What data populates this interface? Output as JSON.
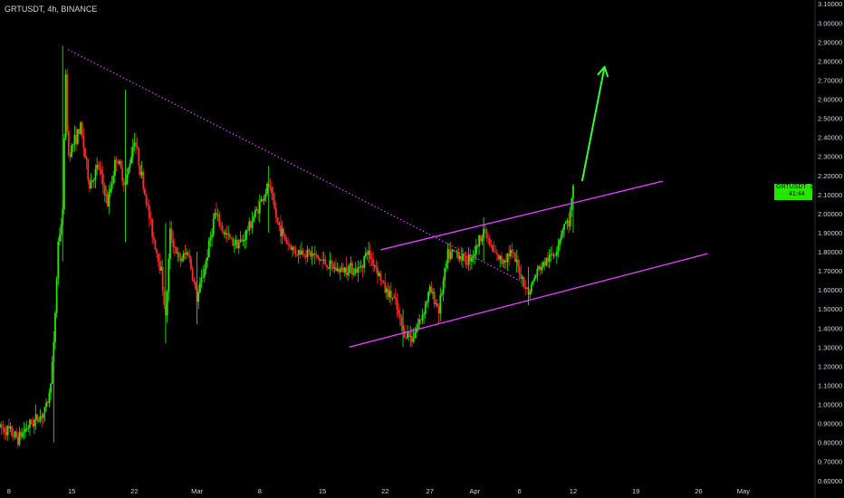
{
  "header": {
    "symbol_line": "GRTUSDT, 4h, BINANCE"
  },
  "price_tag": {
    "symbol": "GRTUSDT",
    "price": "2.12946",
    "countdown": "41:44",
    "color": "#26e600"
  },
  "colors": {
    "background": "#000000",
    "up_candle": "#26e600",
    "down_candle": "#ff2a2a",
    "trendline": "#e040fb",
    "arrow": "#33ff33",
    "axis_text": "#d1d4dc"
  },
  "chart_data": {
    "type": "candlestick",
    "title": "GRTUSDT, 4h, BINANCE",
    "xlabel": "",
    "ylabel": "",
    "ylim": [
      0.58,
      3.12
    ],
    "grid": false,
    "y_ticks": [
      "3.10000",
      "3.00000",
      "2.90000",
      "2.80000",
      "2.70000",
      "2.60000",
      "2.50000",
      "2.40000",
      "2.30000",
      "2.20000",
      "2.10000",
      "2.00000",
      "1.90000",
      "1.80000",
      "1.70000",
      "1.60000",
      "1.50000",
      "1.40000",
      "1.30000",
      "1.20000",
      "1.10000",
      "1.00000",
      "0.90000",
      "0.80000",
      "0.70000",
      "0.60000"
    ],
    "y_tick_values": [
      3.1,
      3.0,
      2.9,
      2.8,
      2.7,
      2.6,
      2.5,
      2.4,
      2.3,
      2.2,
      2.1,
      2.0,
      1.9,
      1.8,
      1.7,
      1.6,
      1.5,
      1.4,
      1.3,
      1.2,
      1.1,
      1.0,
      0.9,
      0.8,
      0.7,
      0.6
    ],
    "x_ticks": [
      {
        "label": "8",
        "day": 0
      },
      {
        "label": "15",
        "day": 7
      },
      {
        "label": "22",
        "day": 14
      },
      {
        "label": "Mar",
        "day": 21
      },
      {
        "label": "8",
        "day": 28
      },
      {
        "label": "15",
        "day": 35
      },
      {
        "label": "22",
        "day": 42
      },
      {
        "label": "27",
        "day": 47
      },
      {
        "label": "Apr",
        "day": 52
      },
      {
        "label": "6",
        "day": 57
      },
      {
        "label": "12",
        "day": 63
      },
      {
        "label": "19",
        "day": 70
      },
      {
        "label": "26",
        "day": 77
      },
      {
        "label": "May",
        "day": 82
      }
    ],
    "xlim": [
      -1,
      90
    ],
    "last_price": 2.12946,
    "price_path": [
      [
        -1,
        0.88
      ],
      [
        0,
        0.86
      ],
      [
        1,
        0.82
      ],
      [
        2,
        0.88
      ],
      [
        3,
        0.92
      ],
      [
        4,
        0.96
      ],
      [
        4.5,
        1.05
      ],
      [
        5,
        1.3
      ],
      [
        5.5,
        1.85
      ],
      [
        6,
        2.0
      ],
      [
        6.3,
        2.75
      ],
      [
        6.6,
        2.3
      ],
      [
        7,
        2.35
      ],
      [
        8,
        2.45
      ],
      [
        9,
        2.15
      ],
      [
        10,
        2.25
      ],
      [
        11,
        2.05
      ],
      [
        12,
        2.3
      ],
      [
        13,
        2.15
      ],
      [
        14,
        2.4
      ],
      [
        15,
        2.15
      ],
      [
        16,
        1.9
      ],
      [
        17,
        1.7
      ],
      [
        17.5,
        1.45
      ],
      [
        18,
        1.9
      ],
      [
        19,
        1.75
      ],
      [
        20,
        1.8
      ],
      [
        21,
        1.55
      ],
      [
        22,
        1.75
      ],
      [
        23,
        2.0
      ],
      [
        24,
        1.9
      ],
      [
        25,
        1.85
      ],
      [
        26,
        1.85
      ],
      [
        27,
        1.95
      ],
      [
        28,
        2.05
      ],
      [
        29,
        2.15
      ],
      [
        30,
        1.95
      ],
      [
        31,
        1.85
      ],
      [
        32,
        1.8
      ],
      [
        33,
        1.8
      ],
      [
        34,
        1.78
      ],
      [
        35,
        1.75
      ],
      [
        36,
        1.72
      ],
      [
        37,
        1.7
      ],
      [
        38,
        1.72
      ],
      [
        39,
        1.7
      ],
      [
        40,
        1.8
      ],
      [
        41,
        1.72
      ],
      [
        42,
        1.6
      ],
      [
        43,
        1.55
      ],
      [
        44,
        1.38
      ],
      [
        45,
        1.35
      ],
      [
        46,
        1.45
      ],
      [
        47,
        1.6
      ],
      [
        48,
        1.5
      ],
      [
        49,
        1.78
      ],
      [
        50,
        1.8
      ],
      [
        51,
        1.75
      ],
      [
        52,
        1.8
      ],
      [
        53,
        1.92
      ],
      [
        54,
        1.8
      ],
      [
        55,
        1.75
      ],
      [
        56,
        1.8
      ],
      [
        57,
        1.7
      ],
      [
        58,
        1.58
      ],
      [
        59,
        1.7
      ],
      [
        60,
        1.75
      ],
      [
        61,
        1.8
      ],
      [
        62,
        1.95
      ],
      [
        62.5,
        1.95
      ],
      [
        63,
        2.12
      ]
    ],
    "wicks": [
      {
        "day": 6,
        "low": 1.75,
        "high": 2.88
      },
      {
        "day": 13,
        "low": 1.85,
        "high": 2.65
      },
      {
        "day": 17.5,
        "low": 1.32,
        "high": 1.95
      },
      {
        "day": 5,
        "low": 0.8,
        "high": 1.3
      },
      {
        "day": 21,
        "low": 1.42,
        "high": 1.8
      },
      {
        "day": 29,
        "low": 1.9,
        "high": 2.25
      },
      {
        "day": 44,
        "low": 1.3,
        "high": 1.5
      },
      {
        "day": 53,
        "low": 1.75,
        "high": 1.98
      },
      {
        "day": 58,
        "low": 1.52,
        "high": 1.72
      },
      {
        "day": 63,
        "low": 1.9,
        "high": 2.15
      }
    ],
    "trendlines": [
      {
        "name": "dotted-resistance",
        "style": "dotted",
        "from": [
          6.6,
          2.86
        ],
        "to": [
          57,
          1.65
        ]
      },
      {
        "name": "channel-upper",
        "style": "solid",
        "from": [
          41.5,
          1.81
        ],
        "to": [
          73,
          2.17
        ]
      },
      {
        "name": "channel-lower",
        "style": "solid",
        "from": [
          38,
          1.3
        ],
        "to": [
          78,
          1.79
        ]
      }
    ],
    "arrow": {
      "from": [
        64,
        2.17
      ],
      "to": [
        66.5,
        2.77
      ]
    }
  }
}
